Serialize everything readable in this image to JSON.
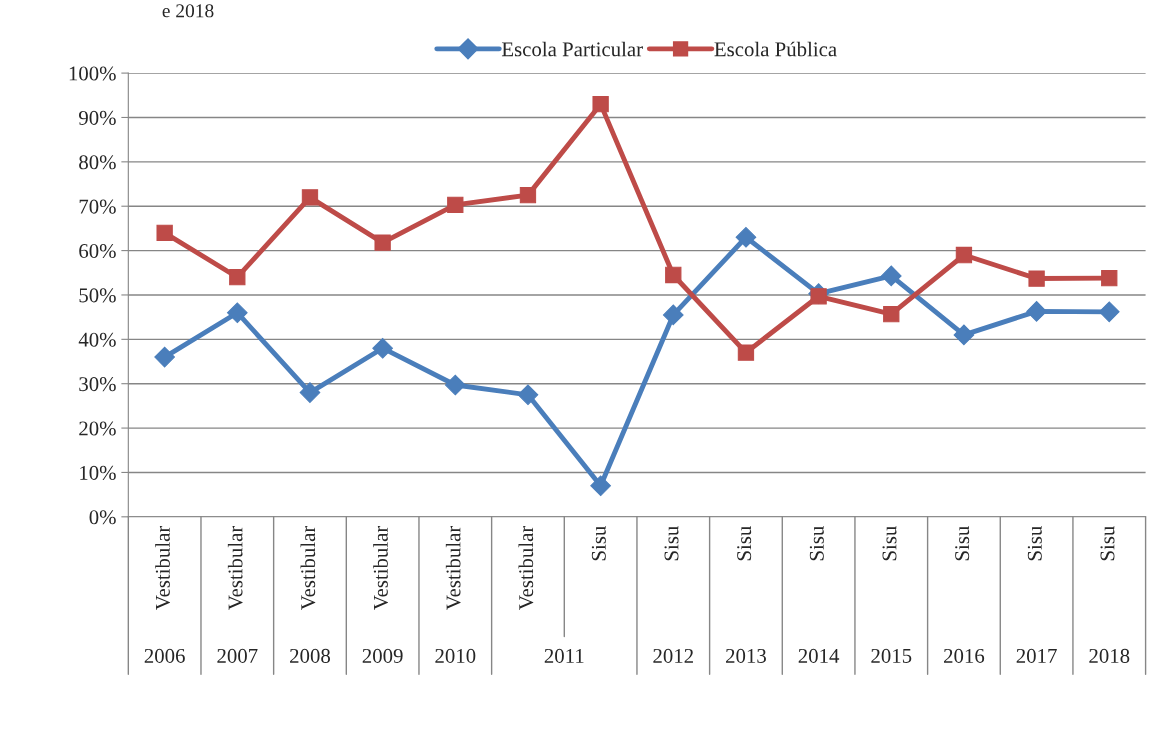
{
  "chart_data": {
    "type": "line",
    "title": "e 2018",
    "categories": [
      "Vestibular",
      "Vestibular",
      "Vestibular",
      "Vestibular",
      "Vestibular",
      "Vestibular",
      "Sisu",
      "Sisu",
      "Sisu",
      "Sisu",
      "Sisu",
      "Sisu",
      "Sisu",
      "Sisu"
    ],
    "annotations": [
      "2006",
      "2007",
      "2008",
      "2009",
      "2010",
      "2011",
      "2012",
      "2013",
      "2014",
      "2015",
      "2016",
      "2017",
      "2018"
    ],
    "series": [
      {
        "name": "Escola Particular",
        "color": "#4a7ebb",
        "marker": "diamond",
        "values": [
          36,
          46,
          28,
          38,
          29.7,
          27.5,
          7,
          45.5,
          63,
          50.3,
          54.3,
          41,
          46.3,
          46.2
        ]
      },
      {
        "name": "Escola Pública",
        "color": "#be4b48",
        "marker": "square",
        "values": [
          64,
          54,
          72,
          61.8,
          70.3,
          72.5,
          93,
          54.5,
          37,
          49.7,
          45.7,
          59,
          53.7,
          53.8
        ]
      }
    ],
    "ylim": [
      0,
      100
    ],
    "yticks": [
      {
        "value": 0,
        "label": "0%"
      },
      {
        "value": 10,
        "label": "10%"
      },
      {
        "value": 20,
        "label": "20%"
      },
      {
        "value": 30,
        "label": "30%"
      },
      {
        "value": 40,
        "label": "40%"
      },
      {
        "value": 50,
        "label": "50%"
      },
      {
        "value": 60,
        "label": "60%"
      },
      {
        "value": 70,
        "label": "70%"
      },
      {
        "value": 80,
        "label": "80%"
      },
      {
        "value": 90,
        "label": "90%"
      },
      {
        "value": 100,
        "label": "100%"
      }
    ],
    "grid": "y",
    "legend": "top",
    "line_style": "solid"
  }
}
